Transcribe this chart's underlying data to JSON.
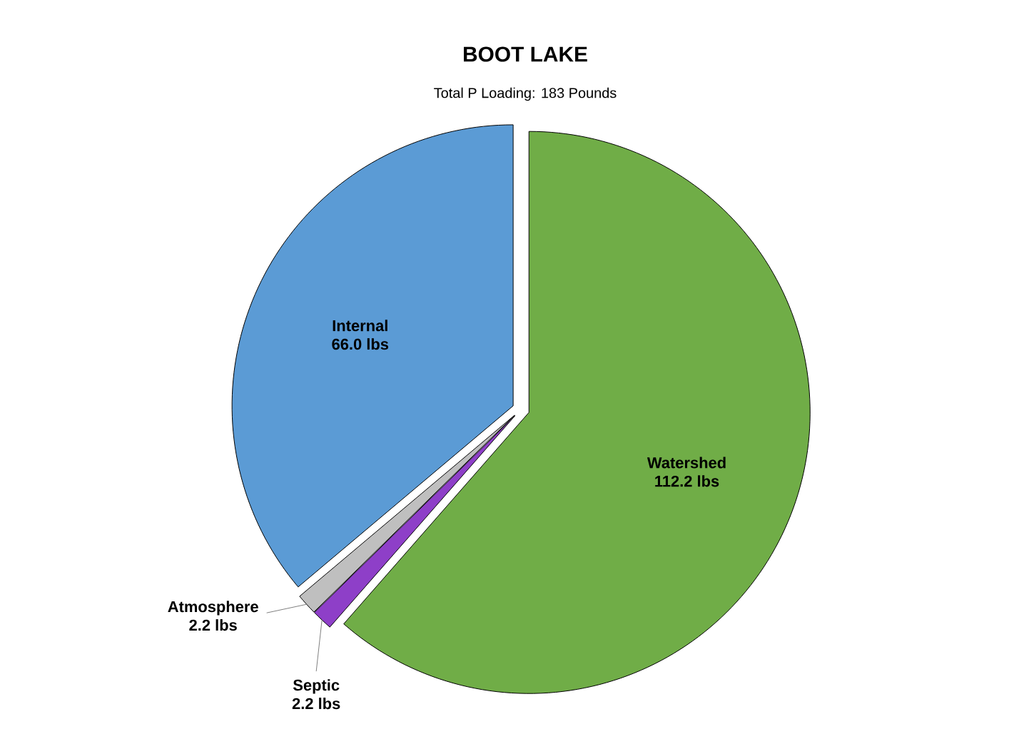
{
  "chart_data": {
    "type": "pie",
    "title": "BOOT LAKE",
    "subtitle": "Total P Loading: 183 Pounds",
    "categories": [
      "Watershed",
      "Septic",
      "Atmosphere",
      "Internal"
    ],
    "values": [
      112.2,
      2.2,
      2.2,
      66.0
    ],
    "value_labels": [
      "112.2 lbs",
      "2.2 lbs",
      "2.2 lbs",
      "66.0 lbs"
    ],
    "colors": [
      "#70ad47",
      "#8e3fc8",
      "#bfbfbf",
      "#5b9bd5"
    ]
  }
}
